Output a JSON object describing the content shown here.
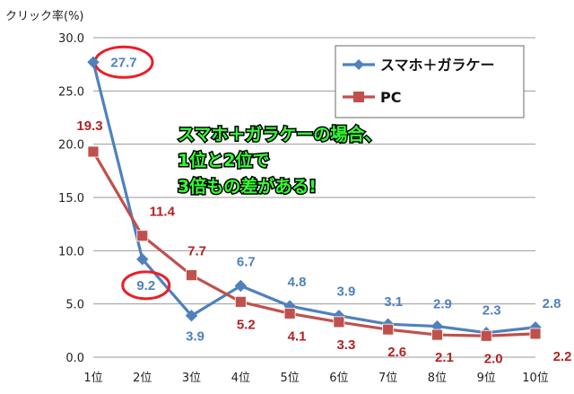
{
  "chart_data": {
    "type": "line",
    "ylabel": "クリック率(%)",
    "ylim": [
      0,
      30
    ],
    "yticks": [
      "0.0",
      "5.0",
      "10.0",
      "15.0",
      "20.0",
      "25.0",
      "30.0"
    ],
    "categories": [
      "1位",
      "2位",
      "3位",
      "4位",
      "5位",
      "6位",
      "7位",
      "8位",
      "9位",
      "10位"
    ],
    "grid": "horizontal",
    "legend": "top-right",
    "series": [
      {
        "name": "スマホ＋ガラケー",
        "color": "#4f81bd",
        "marker": "diamond",
        "values": [
          27.7,
          9.2,
          3.9,
          6.7,
          4.8,
          3.9,
          3.1,
          2.9,
          2.3,
          2.8
        ],
        "labels": [
          "27.7",
          "9.2",
          "3.9",
          "6.7",
          "4.8",
          "3.9",
          "3.1",
          "2.9",
          "2.3",
          "2.8"
        ]
      },
      {
        "name": "PC",
        "color": "#c0504d",
        "marker": "square",
        "values": [
          19.3,
          11.4,
          7.7,
          5.2,
          4.1,
          3.3,
          2.6,
          2.1,
          2.0,
          2.2
        ],
        "labels": [
          "19.3",
          "11.4",
          "7.7",
          "5.2",
          "4.1",
          "3.3",
          "2.6",
          "2.1",
          "2.0",
          "2.2"
        ]
      }
    ],
    "annotation": {
      "lines": [
        "スマホ＋ガラケーの場合、",
        "1位と2位で",
        "3倍もの差がある!"
      ]
    },
    "highlight_color": "#e8202a"
  }
}
